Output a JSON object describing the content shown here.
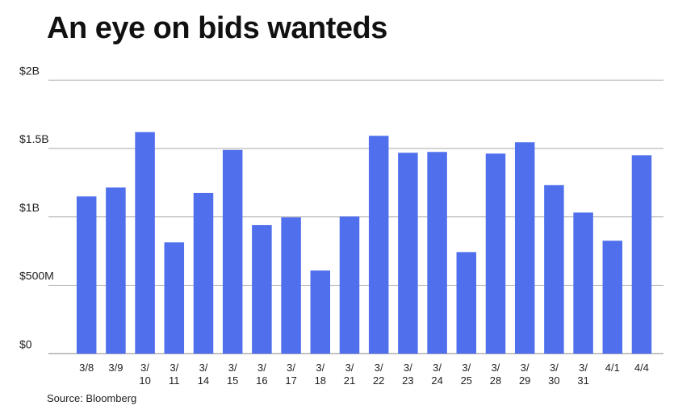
{
  "chart_data": {
    "type": "bar",
    "title": "An eye on bids wanteds",
    "source": "Source: Bloomberg",
    "categories": [
      "3/8",
      "3/9",
      "3/10",
      "3/11",
      "3/14",
      "3/15",
      "3/16",
      "3/17",
      "3/18",
      "3/21",
      "3/22",
      "3/23",
      "3/24",
      "3/25",
      "3/28",
      "3/29",
      "3/30",
      "3/31",
      "4/1",
      "4/4"
    ],
    "values": [
      1.15,
      1.215,
      1.62,
      0.814,
      1.176,
      1.49,
      0.94,
      0.997,
      0.608,
      1.003,
      1.593,
      1.469,
      1.475,
      0.743,
      1.463,
      1.546,
      1.233,
      1.032,
      0.826,
      1.451
    ],
    "value_unit": "billions USD",
    "ylim": [
      0,
      2
    ],
    "yticks": [
      0,
      0.5,
      1,
      1.5,
      2
    ],
    "ytick_labels": [
      "$0",
      "$500M",
      "$1B",
      "$1.5B",
      "$2B"
    ],
    "grid": true,
    "bar_color": "#4f6fec"
  }
}
